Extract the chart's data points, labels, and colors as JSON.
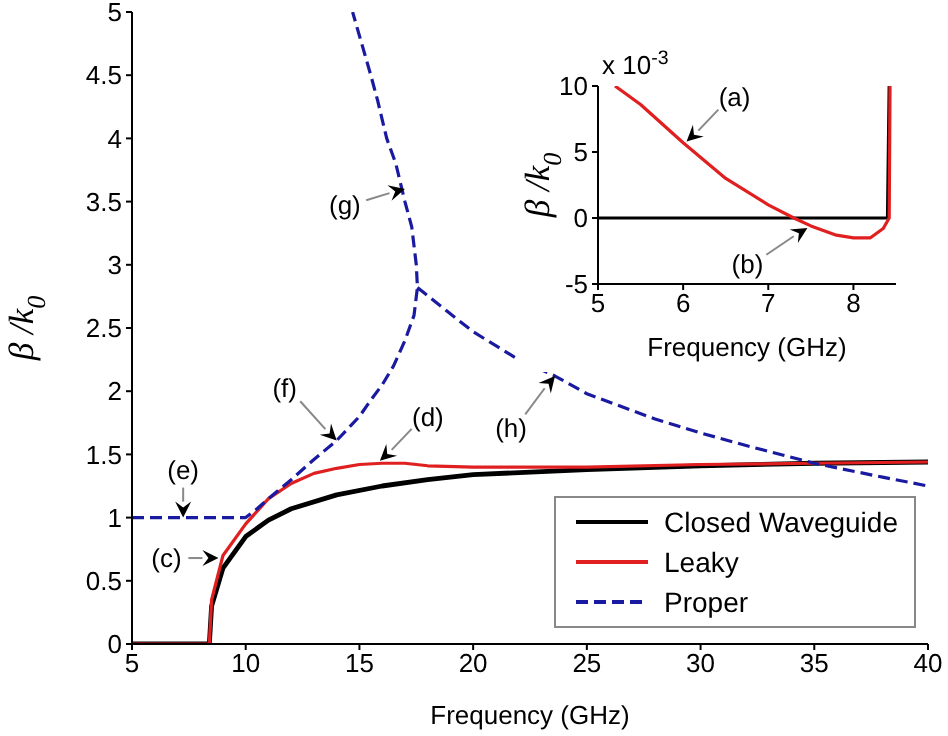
{
  "chart_data": [
    {
      "type": "line",
      "xlabel": "Frequency (GHz)",
      "ylabel": "β /k$_{0}$",
      "xlim": [
        5,
        40
      ],
      "xticks": [
        5,
        10,
        15,
        20,
        25,
        30,
        35,
        40
      ],
      "ylim": [
        0,
        5
      ],
      "yticks": [
        0,
        0.5,
        1,
        1.5,
        2,
        2.5,
        3,
        3.5,
        4,
        4.5,
        5
      ],
      "grid": false,
      "legend": "bottom right",
      "marker": "none",
      "series": [
        {
          "name": "Closed Waveguide",
          "color": "#000000",
          "line_style": "solid",
          "x": [
            5,
            8.4,
            8.5,
            9,
            10,
            11,
            12,
            14,
            16,
            18,
            20,
            25,
            30,
            35,
            40
          ],
          "values": [
            0,
            0,
            0.3,
            0.6,
            0.85,
            0.98,
            1.07,
            1.18,
            1.25,
            1.3,
            1.34,
            1.38,
            1.41,
            1.43,
            1.44
          ]
        },
        {
          "name": "Leaky",
          "color": "#e02020",
          "line_style": "solid",
          "x": [
            5,
            8.4,
            8.5,
            9,
            10,
            11,
            12,
            13,
            14,
            15,
            16,
            17,
            18,
            20,
            25,
            30,
            35,
            40
          ],
          "values": [
            0,
            0,
            0.35,
            0.7,
            0.95,
            1.15,
            1.27,
            1.35,
            1.39,
            1.42,
            1.43,
            1.43,
            1.41,
            1.4,
            1.4,
            1.42,
            1.43,
            1.44
          ]
        },
        {
          "name": "Proper",
          "color": "#1a1aa0",
          "line_style": "dashed",
          "x": [
            5,
            10,
            10.5,
            11,
            12,
            13,
            14,
            15,
            15.5,
            16,
            16.5,
            17,
            17.4,
            17.55,
            17.5,
            17.3,
            17,
            16.6,
            16.2,
            15.8,
            15.5,
            15.1,
            14.7,
            null,
            17.55,
            20,
            22,
            23.6,
            25,
            28,
            30,
            32,
            35,
            38,
            40
          ],
          "values": [
            1,
            1,
            1.07,
            1.15,
            1.3,
            1.46,
            1.61,
            1.8,
            1.93,
            2.05,
            2.2,
            2.4,
            2.6,
            2.82,
            3,
            3.3,
            3.5,
            3.8,
            4,
            4.3,
            4.5,
            4.75,
            5,
            null,
            2.82,
            2.47,
            2.25,
            2.12,
            1.98,
            1.78,
            1.67,
            1.57,
            1.43,
            1.32,
            1.25
          ]
        }
      ],
      "annotations": [
        {
          "text": "(c)",
          "x": 8.8,
          "y": 0.68
        },
        {
          "text": "(d)",
          "x": 15.9,
          "y": 1.45
        },
        {
          "text": "(e)",
          "x": 7.25,
          "y": 1
        },
        {
          "text": "(f)",
          "x": 14,
          "y": 1.61
        },
        {
          "text": "(g)",
          "x": 17,
          "y": 3.6
        },
        {
          "text": "(h)",
          "x": 23.6,
          "y": 2.12
        }
      ]
    },
    {
      "type": "line",
      "xlabel": "Frequency (GHz)",
      "ylabel": "β /k$_{0}$",
      "xlim": [
        5,
        8.5
      ],
      "xticks": [
        5,
        6,
        7,
        8
      ],
      "ylim": [
        -5,
        10
      ],
      "yticks": [
        -5,
        0,
        5,
        10
      ],
      "grid": false,
      "marker": "none",
      "series": [
        {
          "color": "#000000",
          "line_style": "solid",
          "x": [
            5,
            8.4,
            8.42
          ],
          "values": [
            0,
            0,
            10
          ]
        },
        {
          "color": "#e02020",
          "line_style": "solid",
          "x": [
            5.2,
            5.5,
            6,
            6.5,
            7,
            7.3,
            7.5,
            7.8,
            8,
            8.2,
            8.35,
            8.42,
            8.43
          ],
          "values": [
            10,
            8.6,
            5.7,
            3,
            1,
            0,
            -0.6,
            -1.3,
            -1.5,
            -1.5,
            -0.8,
            0,
            10
          ]
        }
      ],
      "annotations": [
        "x 10$^{-3}$",
        {
          "text": "(a)",
          "x": 6.04,
          "y": 5.8
        },
        {
          "text": "(b)",
          "x": 7.46,
          "y": -0.76
        }
      ]
    }
  ]
}
